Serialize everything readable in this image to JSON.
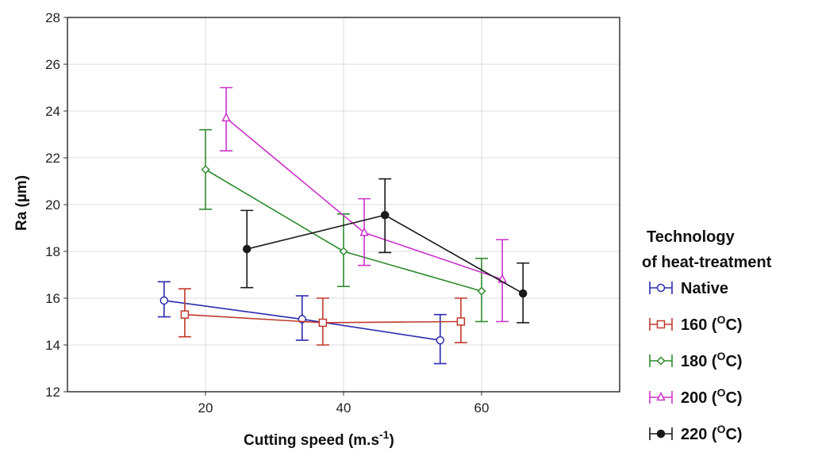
{
  "chart_data": {
    "type": "line",
    "xlabel": "Cutting speed (m.s-1)",
    "xlabel_main": "Cutting speed (m.s",
    "xlabel_sup": "-1",
    "xlabel_end": ")",
    "ylabel": "Ra (µm)",
    "xlim": [
      0,
      80
    ],
    "ylim": [
      12,
      28
    ],
    "xticks": [
      20,
      40,
      60
    ],
    "yticks": [
      12,
      14,
      16,
      18,
      20,
      22,
      24,
      26,
      28
    ],
    "grid": true,
    "error_bars": true,
    "legend_position": "right",
    "legend_title_line1": "Technology",
    "legend_title_line2": "of heat-treatment",
    "series": [
      {
        "name": "Native",
        "color": "#2b2bb0",
        "marker": "circle-open",
        "x": [
          14,
          34,
          54
        ],
        "y": [
          15.9,
          15.1,
          14.2
        ],
        "err_low": [
          15.2,
          14.2,
          13.2
        ],
        "err_high": [
          16.7,
          16.1,
          15.3
        ]
      },
      {
        "name": "160 (OC)",
        "name_num": "160",
        "color": "#c0392b",
        "marker": "square-open",
        "x": [
          17,
          37,
          57
        ],
        "y": [
          15.3,
          14.95,
          15.0
        ],
        "err_low": [
          14.35,
          14.0,
          14.1
        ],
        "err_high": [
          16.4,
          16.0,
          16.0
        ]
      },
      {
        "name": "180 (OC)",
        "name_num": "180",
        "color": "#2e8b2e",
        "marker": "diamond",
        "x": [
          20,
          40,
          60
        ],
        "y": [
          21.5,
          18.0,
          16.3
        ],
        "err_low": [
          19.8,
          16.5,
          15.0
        ],
        "err_high": [
          23.2,
          19.6,
          17.7
        ]
      },
      {
        "name": "200 (OC)",
        "name_num": "200",
        "color": "#cc33cc",
        "marker": "triangle",
        "x": [
          23,
          43,
          63
        ],
        "y": [
          23.7,
          18.8,
          16.8
        ],
        "err_low": [
          22.3,
          17.4,
          15.0
        ],
        "err_high": [
          25.0,
          20.25,
          18.5
        ]
      },
      {
        "name": "220 (OC)",
        "name_num": "220",
        "color": "#1a1a1a",
        "marker": "circle-filled",
        "x": [
          26,
          46,
          66
        ],
        "y": [
          18.1,
          19.55,
          16.2
        ],
        "err_low": [
          16.45,
          17.95,
          14.95
        ],
        "err_high": [
          19.75,
          21.1,
          17.5
        ]
      }
    ]
  },
  "legend_units": {
    "open": "(",
    "sup": "O",
    "unit": "C",
    "close": ")"
  }
}
